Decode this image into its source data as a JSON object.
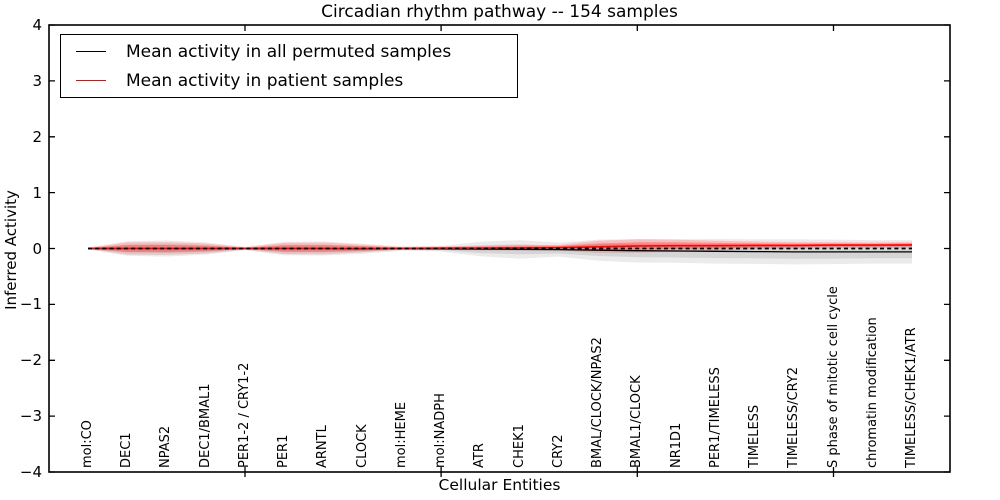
{
  "title": "Circadian rhythm pathway -- 154 samples",
  "axes": {
    "xlabel": "Cellular Entities",
    "ylabel": "Inferred Activity",
    "ytick_labels": [
      "4",
      "3",
      "2",
      "1",
      "0",
      "−1",
      "−2",
      "−3",
      "−4"
    ]
  },
  "colors": {
    "permuted_line": "#000000",
    "patient_line": "#ff0000",
    "permuted_band": "#dddddd",
    "patient_band": "#f79a9a",
    "frame": "#000000"
  },
  "chart_data": {
    "type": "line",
    "title": "Circadian rhythm pathway -- 154 samples",
    "xlabel": "Cellular Entities",
    "ylabel": "Inferred Activity",
    "ylim": [
      -4,
      4
    ],
    "yticks": [
      4,
      3,
      2,
      1,
      0,
      -1,
      -2,
      -3,
      -4
    ],
    "grid": false,
    "legend_position": "upper left",
    "categories": [
      "mol:CO",
      "DEC1",
      "NPAS2",
      "DEC1/BMAL1",
      "PER1-2 / CRY1-2",
      "PER1",
      "ARNTL",
      "CLOCK",
      "mol:HEME",
      "mol:NADPH",
      "ATR",
      "CHEK1",
      "CRY2",
      "BMAL/CLOCK/NPAS2",
      "BMAL1/CLOCK",
      "NR1D1",
      "PER1/TIMELESS",
      "TIMELESS",
      "TIMELESS/CRY2",
      "S phase of mitotic cell cycle",
      "chromatin modification",
      "TIMELESS/CHEK1/ATR"
    ],
    "x_major_tick_indices": [
      4,
      9,
      14,
      19
    ],
    "series": [
      {
        "name": "Mean activity in all permuted samples",
        "color": "#000000",
        "line_style": "solid",
        "values": [
          0,
          0,
          0,
          0,
          0,
          0,
          0,
          -0.005,
          0,
          -0.005,
          -0.01,
          -0.015,
          -0.02,
          -0.03,
          -0.04,
          -0.045,
          -0.05,
          -0.055,
          -0.06,
          -0.06,
          -0.06,
          -0.06
        ],
        "band_halfwidths": [
          0.015,
          0.13,
          0.145,
          0.11,
          0.03,
          0.12,
          0.125,
          0.09,
          0.04,
          0.05,
          0.13,
          0.165,
          0.125,
          0.19,
          0.21,
          0.21,
          0.22,
          0.22,
          0.225,
          0.22,
          0.21,
          0.21
        ],
        "band_color": "#dddddd"
      },
      {
        "name": "Mean activity in patient samples",
        "color": "#ff0000",
        "line_style": "solid",
        "values": [
          0,
          0,
          0,
          0,
          0,
          0,
          0,
          0,
          0,
          0.005,
          0.005,
          0.01,
          0.015,
          0.03,
          0.045,
          0.05,
          0.05,
          0.055,
          0.055,
          0.06,
          0.06,
          0.065
        ],
        "band_halfwidths": [
          0.012,
          0.11,
          0.115,
          0.09,
          0.02,
          0.1,
          0.105,
          0.07,
          0.025,
          0.03,
          0.04,
          0.05,
          0.05,
          0.11,
          0.12,
          0.11,
          0.09,
          0.07,
          0.06,
          0.055,
          0.05,
          0.05
        ],
        "band_color": "#f79a9a"
      }
    ],
    "reference_line": {
      "value": 0,
      "style": "dashed",
      "color": "#000000"
    }
  }
}
